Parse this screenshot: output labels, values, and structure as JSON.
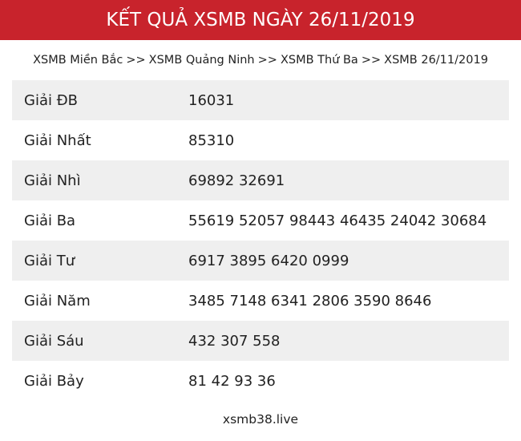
{
  "header": {
    "title": "KẾT QUẢ XSMB NGÀY 26/11/2019"
  },
  "breadcrumb": [
    "XSMB Miền Bắc",
    ">>",
    "XSMB Quảng Ninh",
    ">>",
    "XSMB Thứ Ba",
    ">>",
    "XSMB 26/11/2019"
  ],
  "table": {
    "rows": [
      [
        "Giải ĐB",
        "16031"
      ],
      [
        "Giải Nhất",
        "85310"
      ],
      [
        "Giải Nhì",
        "69892 32691"
      ],
      [
        "Giải Ba",
        "55619 52057 98443 46435 24042 30684"
      ],
      [
        "Giải Tư",
        "6917 3895 6420 0999"
      ],
      [
        "Giải Năm",
        "3485 7148 6341 2806 3590 8646"
      ],
      [
        "Giải Sáu",
        "432 307 558"
      ],
      [
        "Giải Bảy",
        "81 42 93 36"
      ]
    ]
  },
  "footer": {
    "site": "xsmb38.live"
  }
}
